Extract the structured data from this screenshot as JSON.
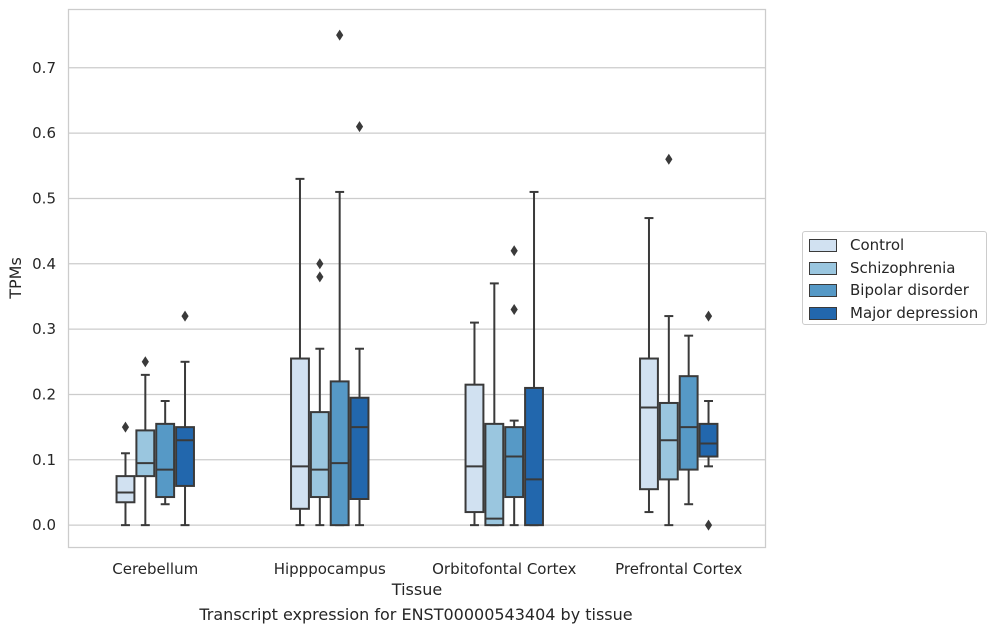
{
  "caption": "Transcript expression for ENST00000543404 by tissue",
  "chart_data": {
    "type": "box",
    "xlabel": "Tissue",
    "ylabel": "TPMs",
    "ylim": [
      -0.035,
      0.79
    ],
    "yticks": [
      0.0,
      0.1,
      0.2,
      0.3,
      0.4,
      0.5,
      0.6,
      0.7
    ],
    "ytick_labels": [
      "0.0",
      "0.1",
      "0.2",
      "0.3",
      "0.4",
      "0.5",
      "0.6",
      "0.7"
    ],
    "grid": "horizontal",
    "legend_position": "right",
    "categories": [
      "Cerebellum",
      "Hipppocampus",
      "Orbitofontal Cortex",
      "Prefrontal Cortex"
    ],
    "series": [
      {
        "name": "Control",
        "color": "#d1e1f1",
        "boxes": [
          {
            "whisker_low": 0.0,
            "q1": 0.035,
            "median": 0.05,
            "q3": 0.075,
            "whisker_high": 0.11,
            "outliers": [
              0.15
            ]
          },
          {
            "whisker_low": 0.0,
            "q1": 0.025,
            "median": 0.09,
            "q3": 0.255,
            "whisker_high": 0.53,
            "outliers": []
          },
          {
            "whisker_low": 0.0,
            "q1": 0.02,
            "median": 0.09,
            "q3": 0.215,
            "whisker_high": 0.31,
            "outliers": []
          },
          {
            "whisker_low": 0.02,
            "q1": 0.055,
            "median": 0.18,
            "q3": 0.255,
            "whisker_high": 0.47,
            "outliers": []
          }
        ]
      },
      {
        "name": "Schizophrenia",
        "color": "#9ac6df",
        "boxes": [
          {
            "whisker_low": 0.0,
            "q1": 0.075,
            "median": 0.095,
            "q3": 0.145,
            "whisker_high": 0.23,
            "outliers": [
              0.25
            ]
          },
          {
            "whisker_low": 0.0,
            "q1": 0.043,
            "median": 0.085,
            "q3": 0.173,
            "whisker_high": 0.27,
            "outliers": [
              0.38,
              0.4
            ]
          },
          {
            "whisker_low": 0.0,
            "q1": 0.0,
            "median": 0.01,
            "q3": 0.155,
            "whisker_high": 0.37,
            "outliers": []
          },
          {
            "whisker_low": 0.0,
            "q1": 0.07,
            "median": 0.13,
            "q3": 0.187,
            "whisker_high": 0.32,
            "outliers": [
              0.56
            ]
          }
        ]
      },
      {
        "name": "Bipolar disorder",
        "color": "#5699c6",
        "boxes": [
          {
            "whisker_low": 0.032,
            "q1": 0.043,
            "median": 0.085,
            "q3": 0.155,
            "whisker_high": 0.19,
            "outliers": []
          },
          {
            "whisker_low": 0.0,
            "q1": 0.0,
            "median": 0.095,
            "q3": 0.22,
            "whisker_high": 0.51,
            "outliers": [
              0.75
            ]
          },
          {
            "whisker_low": 0.0,
            "q1": 0.043,
            "median": 0.105,
            "q3": 0.15,
            "whisker_high": 0.16,
            "outliers": [
              0.33,
              0.42
            ]
          },
          {
            "whisker_low": 0.032,
            "q1": 0.085,
            "median": 0.15,
            "q3": 0.228,
            "whisker_high": 0.29,
            "outliers": []
          }
        ]
      },
      {
        "name": "Major depression",
        "color": "#2267ad",
        "boxes": [
          {
            "whisker_low": 0.0,
            "q1": 0.06,
            "median": 0.13,
            "q3": 0.15,
            "whisker_high": 0.25,
            "outliers": [
              0.32
            ]
          },
          {
            "whisker_low": 0.0,
            "q1": 0.04,
            "median": 0.15,
            "q3": 0.195,
            "whisker_high": 0.27,
            "outliers": [
              0.61
            ]
          },
          {
            "whisker_low": 0.0,
            "q1": 0.0,
            "median": 0.07,
            "q3": 0.21,
            "whisker_high": 0.51,
            "outliers": []
          },
          {
            "whisker_low": 0.09,
            "q1": 0.105,
            "median": 0.125,
            "q3": 0.155,
            "whisker_high": 0.19,
            "outliers": [
              0.0,
              0.32
            ]
          }
        ]
      }
    ]
  }
}
